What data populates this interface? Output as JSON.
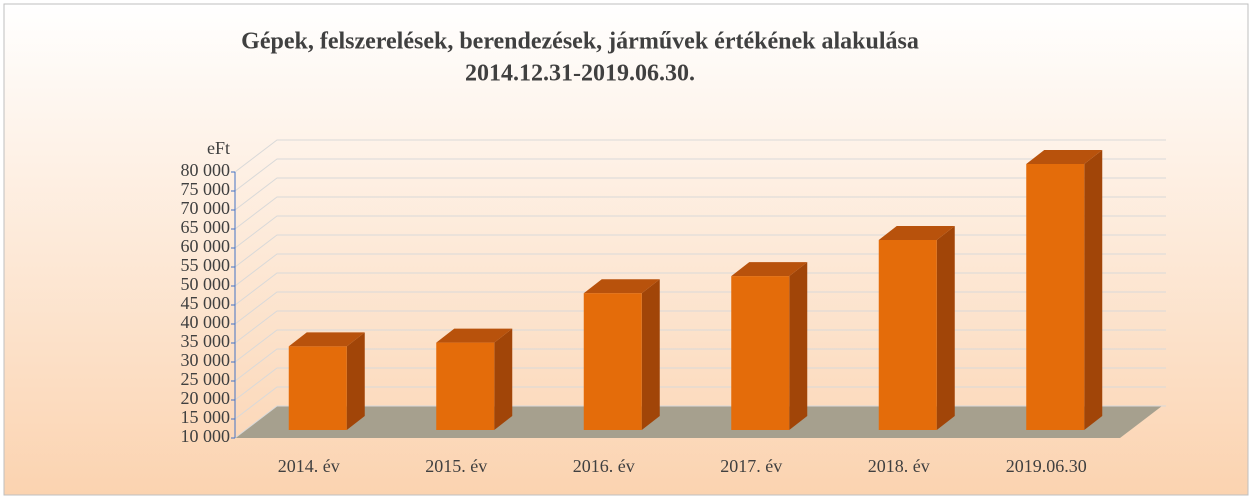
{
  "chart_data": {
    "type": "bar3d",
    "title": "Gépek, felszerelések, berendezések, járművek értékének alakulása",
    "subtitle": "2014.12.31-2019.06.30.",
    "y_label": "eFt",
    "categories": [
      "2014. év",
      "2015. év",
      "2016. év",
      "2017. év",
      "2018. év",
      "2019.06.30"
    ],
    "values": [
      32000,
      33000,
      46000,
      50500,
      60000,
      80000
    ],
    "color": "#e46c0a",
    "ylim": [
      10000,
      80000
    ],
    "yticks": [
      {
        "value": 10000,
        "label": "10 000"
      },
      {
        "value": 15000,
        "label": "15 000"
      },
      {
        "value": 20000,
        "label": "20 000"
      },
      {
        "value": 25000,
        "label": "25 000"
      },
      {
        "value": 30000,
        "label": "30 000"
      },
      {
        "value": 35000,
        "label": "35 000"
      },
      {
        "value": 40000,
        "label": "40 000"
      },
      {
        "value": 45000,
        "label": "45 000"
      },
      {
        "value": 50000,
        "label": "50 000"
      },
      {
        "value": 55000,
        "label": "55 000"
      },
      {
        "value": 60000,
        "label": "60 000"
      },
      {
        "value": 65000,
        "label": "65 000"
      },
      {
        "value": 70000,
        "label": "70 000"
      },
      {
        "value": 75000,
        "label": "75 000"
      },
      {
        "value": 80000,
        "label": "80 000"
      }
    ],
    "grid": true
  }
}
